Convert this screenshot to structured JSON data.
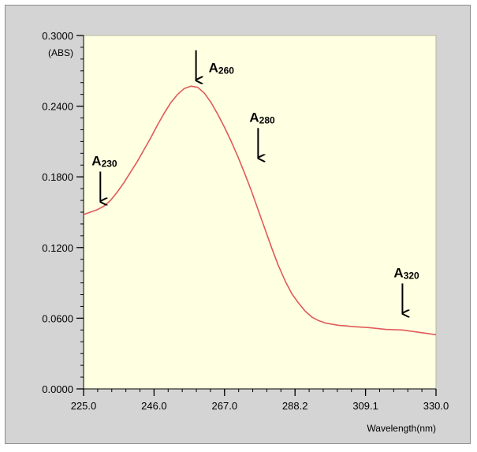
{
  "chart_data": {
    "type": "line",
    "xlabel": "Wavelength(nm)",
    "ylabel_unit": "(ABS)",
    "xlim": [
      225.0,
      330.0
    ],
    "ylim": [
      0.0,
      0.3
    ],
    "x_ticks": [
      "225.0",
      "246.0",
      "267.0",
      "288.2",
      "309.1",
      "330.0"
    ],
    "y_ticks": [
      "0.0000",
      "0.0600",
      "0.1200",
      "0.1800",
      "0.2400",
      "0.3000"
    ],
    "grid": false,
    "series": [
      {
        "color": "#e05a5a",
        "x": [
          225,
          227,
          229,
          231,
          233,
          235,
          237,
          239,
          241,
          243,
          245,
          247,
          249,
          251,
          253,
          255,
          257,
          259,
          261,
          263,
          265,
          267,
          269,
          271,
          273,
          275,
          277,
          279,
          281,
          283,
          285,
          287,
          289,
          291,
          293,
          295,
          297,
          299,
          301,
          303,
          305,
          310,
          315,
          320,
          325,
          330
        ],
        "y": [
          0.148,
          0.15,
          0.152,
          0.155,
          0.16,
          0.167,
          0.175,
          0.184,
          0.193,
          0.203,
          0.213,
          0.224,
          0.234,
          0.243,
          0.25,
          0.255,
          0.257,
          0.256,
          0.251,
          0.243,
          0.233,
          0.222,
          0.21,
          0.197,
          0.183,
          0.168,
          0.152,
          0.136,
          0.12,
          0.105,
          0.092,
          0.081,
          0.073,
          0.066,
          0.061,
          0.058,
          0.056,
          0.055,
          0.054,
          0.0535,
          0.053,
          0.052,
          0.0505,
          0.05,
          0.048,
          0.046
        ]
      }
    ],
    "annotations": [
      {
        "main": "A",
        "sub": "230",
        "x": 230,
        "y": 0.155,
        "label_side": "above"
      },
      {
        "main": "A",
        "sub": "260",
        "x": 258.5,
        "y": 0.258,
        "label_side": "right"
      },
      {
        "main": "A",
        "sub": "280",
        "x": 277,
        "y": 0.192,
        "label_side": "above"
      },
      {
        "main": "A",
        "sub": "320",
        "x": 320,
        "y": 0.06,
        "label_side": "above"
      }
    ],
    "colors": {
      "plot_background": "#ffffe1",
      "frame_background": "#d4d4d4",
      "line": "#e05a5a",
      "axis": "#000000"
    }
  }
}
